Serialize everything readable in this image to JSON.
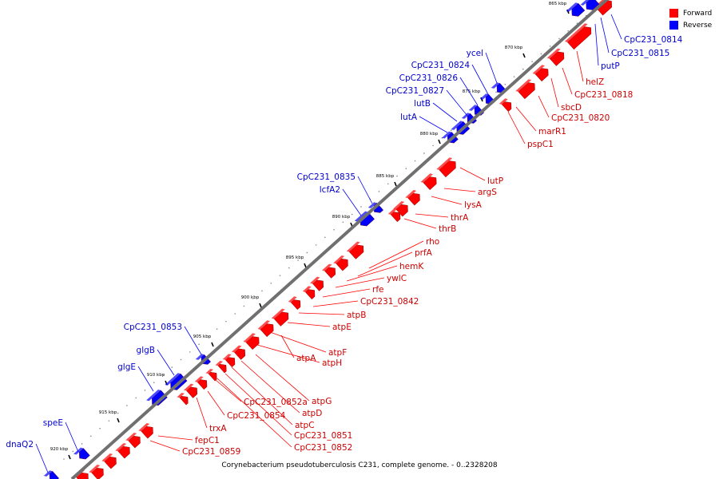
{
  "caption": "Corynebacterium pseudotuberculosis C231, complete genome. - 0..2328208",
  "legend": {
    "forward": {
      "label": "Forward",
      "color": "#ff0000"
    },
    "reverse": {
      "label": "Reverse",
      "color": "#0000ff"
    }
  },
  "colors": {
    "backbone": "#707070",
    "tick": "#000000",
    "forward_label": "#cc0000",
    "reverse_label": "#0000cc",
    "leader_forward": "#ff0000",
    "leader_reverse": "#0000ff"
  },
  "ticks": [
    "865 kbp",
    "870 kbp",
    "875 kbp",
    "880 kbp",
    "885 kbp",
    "890 kbp",
    "895 kbp",
    "900 kbp",
    "905 kbp",
    "910 kbp",
    "915 kbp",
    "920 kbp"
  ],
  "reverse_genes": [
    "CpC231_0814",
    "CpC231_0815",
    "putP",
    "ycel",
    "CpC231_0824",
    "CpC231_0826",
    "CpC231_0827",
    "lutB",
    "lutA",
    "CpC231_0835",
    "lcfA2",
    "CpC231_0853",
    "glgB",
    "glgE",
    "speE",
    "dnaQ2"
  ],
  "forward_genes": [
    "helZ",
    "CpC231_0818",
    "sbcD",
    "CpC231_0820",
    "marR1",
    "pspC1",
    "lutP",
    "argS",
    "lysA",
    "thrA",
    "thrB",
    "rho",
    "prfA",
    "hemK",
    "ywlC",
    "rfe",
    "CpC231_0842",
    "atpB",
    "atpE",
    "atpF",
    "atpH",
    "atpA",
    "atpG",
    "atpD",
    "atpC",
    "CpC231_0851",
    "CpC231_0852",
    "CpC231_0852a",
    "CpC231_0854",
    "trxA",
    "fepC1",
    "CpC231_0859"
  ]
}
